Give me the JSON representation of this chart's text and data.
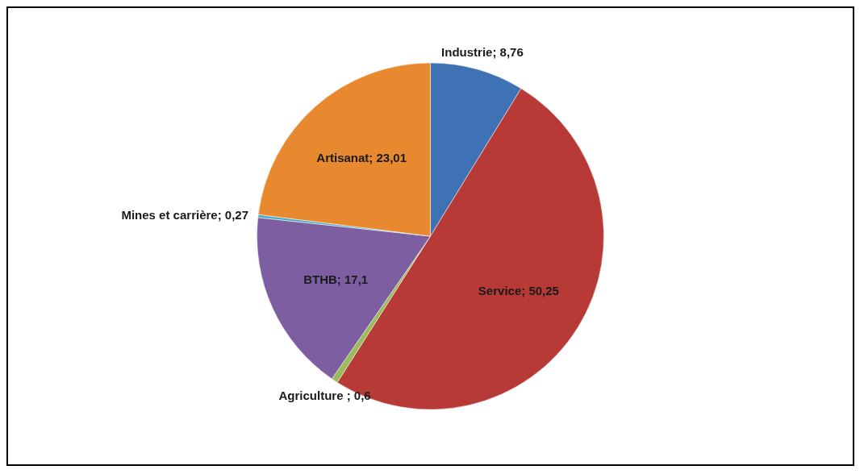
{
  "chart_data": {
    "type": "pie",
    "categories": [
      "Industrie",
      "Service",
      "Agriculture ",
      "BTHB",
      "Mines et carrière",
      "Artisanat"
    ],
    "values": [
      8.76,
      50.25,
      0.6,
      17.1,
      0.27,
      23.01
    ],
    "colors": [
      "#3e72b5",
      "#b83a37",
      "#9bba59",
      "#7d5ea0",
      "#4bacc6",
      "#e8892f"
    ],
    "value_labels": [
      "8,76",
      "50,25",
      "0,6",
      "17,1",
      "0,27",
      "23,01"
    ]
  }
}
